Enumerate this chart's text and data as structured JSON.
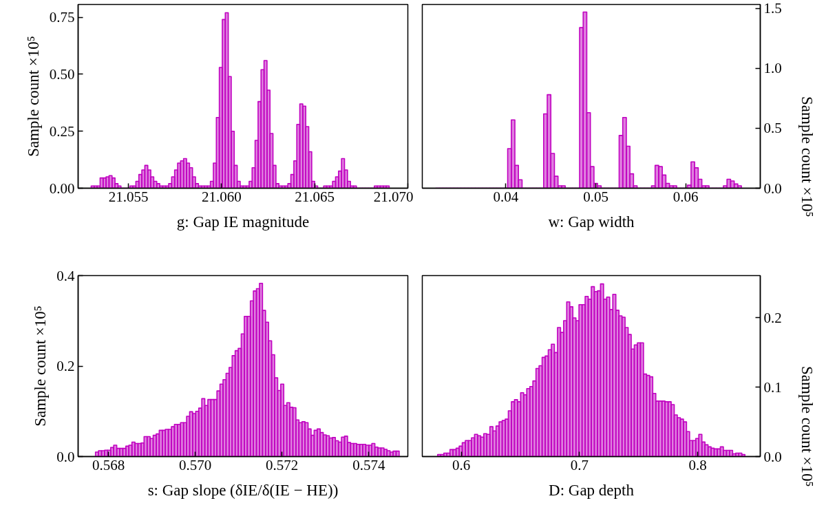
{
  "chart_data": [
    {
      "type": "histogram",
      "xlabel": "g: Gap IE magnitude",
      "ylabel": "Sample count ×10⁵",
      "color": "#c000c0",
      "xlim": [
        21.0523,
        21.07
      ],
      "ylim": [
        0,
        0.806
      ],
      "xticks": [
        21.055,
        {
          "value": 21.06,
          "label": "21.060"
        },
        21.065,
        {
          "value": 21.07,
          "label": "21.070"
        }
      ],
      "yticks": [
        {
          "value": 0,
          "label": "0.00"
        },
        0.25,
        {
          "value": 0.5,
          "label": "0.50"
        },
        0.75
      ],
      "bins": [
        21.053,
        21.05316,
        21.05332,
        21.05348,
        21.05364,
        21.0538,
        21.05396,
        21.05412,
        21.05428,
        21.05444,
        21.0546,
        21.05476,
        21.05492,
        21.05508,
        21.05524,
        21.0554,
        21.05556,
        21.05572,
        21.05588,
        21.05604,
        21.0562,
        21.05636,
        21.05652,
        21.05668,
        21.05684,
        21.057,
        21.05716,
        21.05732,
        21.05748,
        21.05764,
        21.0578,
        21.05796,
        21.05812,
        21.05828,
        21.05844,
        21.0586,
        21.05876,
        21.05892,
        21.05908,
        21.05924,
        21.0594,
        21.05956,
        21.05972,
        21.05988,
        21.06004,
        21.0602,
        21.06036,
        21.06052,
        21.06068,
        21.06084,
        21.061,
        21.06116,
        21.06132,
        21.06148,
        21.06164,
        21.0618,
        21.06196,
        21.06212,
        21.06228,
        21.06244,
        21.0626,
        21.06276,
        21.06292,
        21.06308,
        21.06324,
        21.0634,
        21.06356,
        21.06372,
        21.06388,
        21.06404,
        21.0642,
        21.06436,
        21.06452,
        21.06468,
        21.06484,
        21.065,
        21.06516,
        21.06532,
        21.06548,
        21.06564,
        21.0658,
        21.06596,
        21.06612,
        21.06628,
        21.06644,
        21.0666,
        21.06676,
        21.06692,
        21.06708,
        21.06724,
        21.0674,
        21.06756,
        21.06772,
        21.06788,
        21.06804,
        21.0682,
        21.06836,
        21.06852,
        21.06868,
        21.06884,
        21.069
      ],
      "values": [
        0.01,
        0.01,
        0.01,
        0.045,
        0.045,
        0.05,
        0.055,
        0.045,
        0.02,
        0.01,
        0,
        0,
        0,
        0.01,
        0.01,
        0.03,
        0.06,
        0.08,
        0.1,
        0.08,
        0.05,
        0.03,
        0.02,
        0.01,
        0.01,
        0.01,
        0.02,
        0.05,
        0.08,
        0.11,
        0.12,
        0.13,
        0.11,
        0.09,
        0.05,
        0.02,
        0.01,
        0.01,
        0.01,
        0.01,
        0.03,
        0.11,
        0.31,
        0.53,
        0.74,
        0.77,
        0.49,
        0.25,
        0.1,
        0.03,
        0.01,
        0.01,
        0.01,
        0.03,
        0.09,
        0.21,
        0.38,
        0.52,
        0.56,
        0.43,
        0.24,
        0.1,
        0.02,
        0.01,
        0.01,
        0.01,
        0.02,
        0.06,
        0.12,
        0.28,
        0.37,
        0.36,
        0.27,
        0.16,
        0.03,
        0.01,
        0,
        0,
        0.01,
        0.01,
        0.01,
        0.03,
        0.05,
        0.075,
        0.13,
        0.08,
        0.03,
        0.01,
        0.01,
        0,
        0,
        0,
        0,
        0,
        0,
        0.01,
        0.01,
        0.01,
        0.01,
        0.01
      ]
    },
    {
      "type": "histogram",
      "xlabel": "w: Gap width",
      "ylabel": "Sample count ×10⁵",
      "color": "#c000c0",
      "xlim": [
        0.0307,
        0.0683
      ],
      "ylim": [
        0,
        1.533
      ],
      "xticks": [
        0.04,
        0.05,
        0.06
      ],
      "yticks": [
        {
          "value": 0,
          "label": "0.0"
        },
        0.5,
        {
          "value": 1,
          "label": "1.0"
        },
        1.5
      ],
      "bins": [
        0.0322,
        0.0326,
        0.033,
        0.0334,
        0.0338,
        0.0342,
        0.0346,
        0.035,
        0.0354,
        0.0358,
        0.0362,
        0.0366,
        0.037,
        0.0374,
        0.0378,
        0.0382,
        0.0386,
        0.039,
        0.0394,
        0.0398,
        0.0402,
        0.0406,
        0.041,
        0.0414,
        0.0418,
        0.0422,
        0.0426,
        0.043,
        0.0434,
        0.0438,
        0.0442,
        0.0446,
        0.045,
        0.0454,
        0.0458,
        0.0462,
        0.0466,
        0.047,
        0.0474,
        0.0478,
        0.0482,
        0.0486,
        0.049,
        0.0494,
        0.0498,
        0.0502,
        0.0506,
        0.051,
        0.0514,
        0.0518,
        0.0522,
        0.0526,
        0.053,
        0.0534,
        0.0538,
        0.0542,
        0.0546,
        0.055,
        0.0554,
        0.0558,
        0.0562,
        0.0566,
        0.057,
        0.0574,
        0.0578,
        0.0582,
        0.0586,
        0.059,
        0.0594,
        0.0598,
        0.0602,
        0.0606,
        0.061,
        0.0614,
        0.0618,
        0.0622,
        0.0626,
        0.063,
        0.0634,
        0.0638,
        0.0642,
        0.0646,
        0.065,
        0.0654,
        0.0658,
        0.0662
      ],
      "values": [
        0,
        0,
        0,
        0,
        0,
        0,
        0,
        0,
        0,
        0,
        0,
        0,
        0,
        0,
        0,
        0,
        0,
        0,
        0,
        0,
        0.33,
        0.57,
        0.19,
        0.07,
        0,
        0,
        0,
        0,
        0,
        0,
        0.62,
        0.78,
        0.29,
        0.1,
        0.02,
        0.02,
        0,
        0,
        0,
        0,
        1.34,
        1.47,
        0.63,
        0.18,
        0.04,
        0.02,
        0,
        0,
        0,
        0,
        0,
        0.44,
        0.59,
        0.35,
        0.12,
        0.02,
        0,
        0,
        0,
        0,
        0.02,
        0.19,
        0.18,
        0.11,
        0.04,
        0.02,
        0.02,
        0,
        0,
        0,
        0.025,
        0.22,
        0.17,
        0.075,
        0.02,
        0.02,
        0,
        0,
        0,
        0,
        0.02,
        0.075,
        0.06,
        0.035,
        0.02
      ]
    },
    {
      "type": "histogram",
      "xlabel": "s: Gap slope (δIE/δ(IE − HE))",
      "ylabel": "Sample count ×10⁵",
      "color": "#c000c0",
      "xlim": [
        0.5673,
        0.5749
      ],
      "ylim": [
        0,
        0.4
      ],
      "xticks": [
        0.568,
        {
          "value": 0.57,
          "label": "0.570"
        },
        0.572,
        0.574
      ],
      "yticks": [
        {
          "value": 0,
          "label": "0.0"
        },
        0.2,
        0.4
      ],
      "bins": [
        0.5677,
        0.56777,
        0.56784,
        0.56791,
        0.56798,
        0.56805,
        0.56812,
        0.56819,
        0.56826,
        0.56833,
        0.5684,
        0.56847,
        0.56854,
        0.56861,
        0.56868,
        0.56875,
        0.56882,
        0.56889,
        0.56896,
        0.56903,
        0.5691,
        0.56917,
        0.56924,
        0.56931,
        0.56938,
        0.56945,
        0.56952,
        0.56959,
        0.56966,
        0.56973,
        0.5698,
        0.56987,
        0.56994,
        0.57001,
        0.57008,
        0.57015,
        0.57022,
        0.57029,
        0.57036,
        0.57043,
        0.5705,
        0.57057,
        0.57064,
        0.57071,
        0.57078,
        0.57085,
        0.57092,
        0.57099,
        0.57106,
        0.57113,
        0.5712,
        0.57127,
        0.57134,
        0.57141,
        0.57148,
        0.57155,
        0.57162,
        0.57169,
        0.57176,
        0.57183,
        0.5719,
        0.57197,
        0.57204,
        0.57211,
        0.57218,
        0.57225,
        0.57232,
        0.57239,
        0.57246,
        0.57253,
        0.5726,
        0.57267,
        0.57274,
        0.57281,
        0.57288,
        0.57295,
        0.57302,
        0.57309,
        0.57316,
        0.57323,
        0.5733,
        0.57337,
        0.57344,
        0.57351,
        0.57358,
        0.57365,
        0.57372,
        0.57379,
        0.57386,
        0.57393,
        0.574,
        0.57407,
        0.57414,
        0.57421,
        0.57428,
        0.57435,
        0.57442,
        0.57449,
        0.57456,
        0.57463,
        0.5747
      ],
      "values": [
        0.01,
        0.013,
        0.013,
        0.014,
        0.014,
        0.02,
        0.025,
        0.018,
        0.018,
        0.018,
        0.023,
        0.025,
        0.032,
        0.029,
        0.029,
        0.03,
        0.044,
        0.044,
        0.04,
        0.047,
        0.05,
        0.058,
        0.058,
        0.06,
        0.06,
        0.066,
        0.071,
        0.071,
        0.075,
        0.075,
        0.089,
        0.099,
        0.095,
        0.1,
        0.107,
        0.128,
        0.113,
        0.126,
        0.126,
        0.126,
        0.145,
        0.16,
        0.17,
        0.184,
        0.197,
        0.223,
        0.234,
        0.239,
        0.271,
        0.31,
        0.31,
        0.344,
        0.366,
        0.371,
        0.383,
        0.323,
        0.297,
        0.256,
        0.225,
        0.174,
        0.146,
        0.16,
        0.113,
        0.119,
        0.109,
        0.108,
        0.081,
        0.075,
        0.077,
        0.075,
        0.061,
        0.047,
        0.058,
        0.061,
        0.053,
        0.048,
        0.046,
        0.041,
        0.042,
        0.035,
        0.032,
        0.043,
        0.045,
        0.031,
        0.029,
        0.029,
        0.027,
        0.027,
        0.027,
        0.025,
        0.025,
        0.029,
        0.021,
        0.019,
        0.019,
        0.016,
        0.013,
        0.01,
        0.012,
        0.012
      ]
    },
    {
      "type": "histogram",
      "xlabel": "D: Gap depth",
      "ylabel": "Sample count ×10⁵",
      "color": "#c000c0",
      "xlim": [
        0.567,
        0.853
      ],
      "ylim": [
        0,
        0.261
      ],
      "xticks": [
        0.6,
        0.7,
        0.8
      ],
      "yticks": [
        {
          "value": 0,
          "label": "0.0"
        },
        0.1,
        0.2
      ],
      "bins": [
        0.58,
        0.5826,
        0.5852,
        0.5878,
        0.5904,
        0.593,
        0.5956,
        0.5982,
        0.6008,
        0.6034,
        0.606,
        0.6086,
        0.6112,
        0.6138,
        0.6164,
        0.619,
        0.6216,
        0.6242,
        0.6268,
        0.6294,
        0.632,
        0.6346,
        0.6372,
        0.6398,
        0.6424,
        0.645,
        0.6476,
        0.6502,
        0.6528,
        0.6554,
        0.658,
        0.6606,
        0.6632,
        0.6658,
        0.6684,
        0.671,
        0.6736,
        0.6762,
        0.6788,
        0.6814,
        0.684,
        0.6866,
        0.6892,
        0.6918,
        0.6944,
        0.697,
        0.6996,
        0.7022,
        0.7048,
        0.7074,
        0.71,
        0.7126,
        0.7152,
        0.7178,
        0.7204,
        0.723,
        0.7256,
        0.7282,
        0.7308,
        0.7334,
        0.736,
        0.7386,
        0.7412,
        0.7438,
        0.7464,
        0.749,
        0.7516,
        0.7542,
        0.7568,
        0.7594,
        0.762,
        0.7646,
        0.7672,
        0.7698,
        0.7724,
        0.775,
        0.7776,
        0.7802,
        0.7828,
        0.7854,
        0.788,
        0.7906,
        0.7932,
        0.7958,
        0.7984,
        0.801,
        0.8036,
        0.8062,
        0.8088,
        0.8114,
        0.814,
        0.8166,
        0.8192,
        0.8218,
        0.8244,
        0.827,
        0.8296,
        0.8322,
        0.8348,
        0.8374,
        0.84
      ],
      "values": [
        0.003,
        0.003,
        0.005,
        0.005,
        0.01,
        0.01,
        0.012,
        0.015,
        0.02,
        0.023,
        0.023,
        0.027,
        0.032,
        0.03,
        0.028,
        0.033,
        0.032,
        0.043,
        0.037,
        0.044,
        0.05,
        0.052,
        0.054,
        0.066,
        0.079,
        0.082,
        0.079,
        0.092,
        0.089,
        0.098,
        0.101,
        0.109,
        0.127,
        0.131,
        0.143,
        0.145,
        0.154,
        0.162,
        0.15,
        0.186,
        0.179,
        0.196,
        0.223,
        0.216,
        0.2,
        0.196,
        0.219,
        0.219,
        0.231,
        0.227,
        0.245,
        0.238,
        0.239,
        0.249,
        0.227,
        0.23,
        0.212,
        0.234,
        0.211,
        0.203,
        0.201,
        0.186,
        0.176,
        0.155,
        0.161,
        0.164,
        0.164,
        0.119,
        0.117,
        0.115,
        0.091,
        0.08,
        0.08,
        0.08,
        0.079,
        0.079,
        0.075,
        0.06,
        0.056,
        0.054,
        0.05,
        0.036,
        0.023,
        0.023,
        0.026,
        0.032,
        0.021,
        0.017,
        0.014,
        0.012,
        0.011,
        0.011,
        0.014,
        0.009,
        0.009,
        0.009,
        0.004,
        0.005,
        0.005,
        0.003
      ]
    }
  ]
}
